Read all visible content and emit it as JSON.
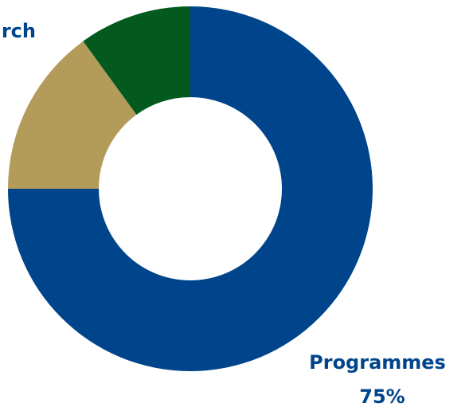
{
  "chart_data": {
    "type": "pie",
    "variant": "donut",
    "slices": [
      {
        "label": "Programmes",
        "value": 75,
        "value_label": "75%",
        "color": "#00458c"
      },
      {
        "label": "",
        "value": 15,
        "value_label": "",
        "color": "#b39b59"
      },
      {
        "label": "",
        "value": 10,
        "value_label": "",
        "color": "#045a1e"
      }
    ],
    "callouts": [
      {
        "text": "rch",
        "slice": 2
      }
    ],
    "label_color": "#00458c",
    "legend": "none"
  }
}
